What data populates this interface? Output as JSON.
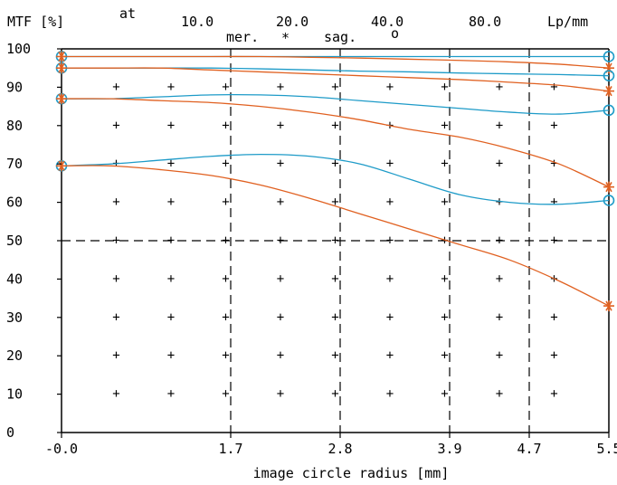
{
  "chart_data": {
    "type": "line",
    "header": {
      "y_unit_label": "MTF [%]",
      "at_label": "at",
      "frequencies": [
        "10.0",
        "20.0",
        "40.0",
        "80.0"
      ],
      "frequency_unit": "Lp/mm",
      "meridional_label": "mer.",
      "meridional_marker": "*",
      "sagittal_label": "sag.",
      "sagittal_marker": "o"
    },
    "xlabel": "image circle radius [mm]",
    "ylabel": "MTF [%]",
    "xlim": [
      0,
      5.5
    ],
    "ylim": [
      0,
      100
    ],
    "x_ticks": [
      {
        "value": 0,
        "label": "-0.0"
      },
      {
        "value": 1.7,
        "label": "1.7"
      },
      {
        "value": 2.8,
        "label": "2.8"
      },
      {
        "value": 3.9,
        "label": "3.9"
      },
      {
        "value": 4.7,
        "label": "4.7"
      },
      {
        "value": 5.5,
        "label": "5.5"
      }
    ],
    "y_ticks": [
      0,
      10,
      20,
      30,
      40,
      50,
      60,
      70,
      80,
      90,
      100
    ],
    "reference_line_y": 50,
    "grid": "dots",
    "colors": {
      "meridional": "#e06020",
      "sagittal": "#1e9bc8",
      "axes": "#000000"
    },
    "series": [
      {
        "frequency": "10.0",
        "type": "sagittal",
        "x": [
          0,
          0.5,
          1.0,
          1.5,
          2.0,
          2.5,
          3.0,
          3.5,
          4.0,
          4.5,
          5.0,
          5.5
        ],
        "y": [
          98,
          98,
          98,
          98,
          98,
          98,
          98,
          98,
          98,
          98,
          98,
          98
        ]
      },
      {
        "frequency": "10.0",
        "type": "meridional",
        "x": [
          0,
          0.5,
          1.0,
          1.5,
          2.0,
          2.5,
          3.0,
          3.5,
          4.0,
          4.5,
          5.0,
          5.5
        ],
        "y": [
          98,
          98,
          98,
          98,
          98,
          97.8,
          97.6,
          97.3,
          97,
          96.6,
          96,
          95
        ]
      },
      {
        "frequency": "20.0",
        "type": "sagittal",
        "x": [
          0,
          0.5,
          1.0,
          1.5,
          2.0,
          2.5,
          3.0,
          3.5,
          4.0,
          4.5,
          5.0,
          5.5
        ],
        "y": [
          95,
          95,
          95,
          95,
          94.8,
          94.5,
          94.2,
          94,
          93.7,
          93.5,
          93.3,
          93
        ]
      },
      {
        "frequency": "20.0",
        "type": "meridional",
        "x": [
          0,
          0.5,
          1.0,
          1.5,
          2.0,
          2.5,
          3.0,
          3.5,
          4.0,
          4.5,
          5.0,
          5.5
        ],
        "y": [
          95,
          95,
          95,
          94.5,
          94,
          93.5,
          93,
          92.5,
          92,
          91.3,
          90.5,
          89
        ]
      },
      {
        "frequency": "40.0",
        "type": "sagittal",
        "x": [
          0,
          0.5,
          1.0,
          1.5,
          2.0,
          2.5,
          3.0,
          3.5,
          4.0,
          4.5,
          5.0,
          5.5
        ],
        "y": [
          87,
          87,
          87.5,
          88,
          88,
          87.5,
          86.5,
          85.5,
          84.5,
          83.5,
          83,
          84
        ]
      },
      {
        "frequency": "40.0",
        "type": "meridional",
        "x": [
          0,
          0.5,
          1.0,
          1.5,
          2.0,
          2.5,
          3.0,
          3.5,
          4.0,
          4.5,
          5.0,
          5.5
        ],
        "y": [
          87,
          87,
          86.5,
          86,
          85,
          83.5,
          81.5,
          79,
          77,
          74,
          70,
          64
        ]
      },
      {
        "frequency": "80.0",
        "type": "sagittal",
        "x": [
          0,
          0.5,
          1.0,
          1.5,
          2.0,
          2.5,
          3.0,
          3.5,
          4.0,
          4.5,
          5.0,
          5.5
        ],
        "y": [
          69.5,
          70,
          71,
          72,
          72.5,
          72,
          70,
          66,
          62,
          60,
          59.5,
          60.5
        ]
      },
      {
        "frequency": "80.0",
        "type": "meridional",
        "x": [
          0,
          0.5,
          1.0,
          1.5,
          2.0,
          2.5,
          3.0,
          3.5,
          4.0,
          4.5,
          5.0,
          5.5
        ],
        "y": [
          69.5,
          69.5,
          68.5,
          67,
          64.5,
          61,
          57,
          53,
          49,
          45,
          39.5,
          33
        ]
      }
    ]
  }
}
